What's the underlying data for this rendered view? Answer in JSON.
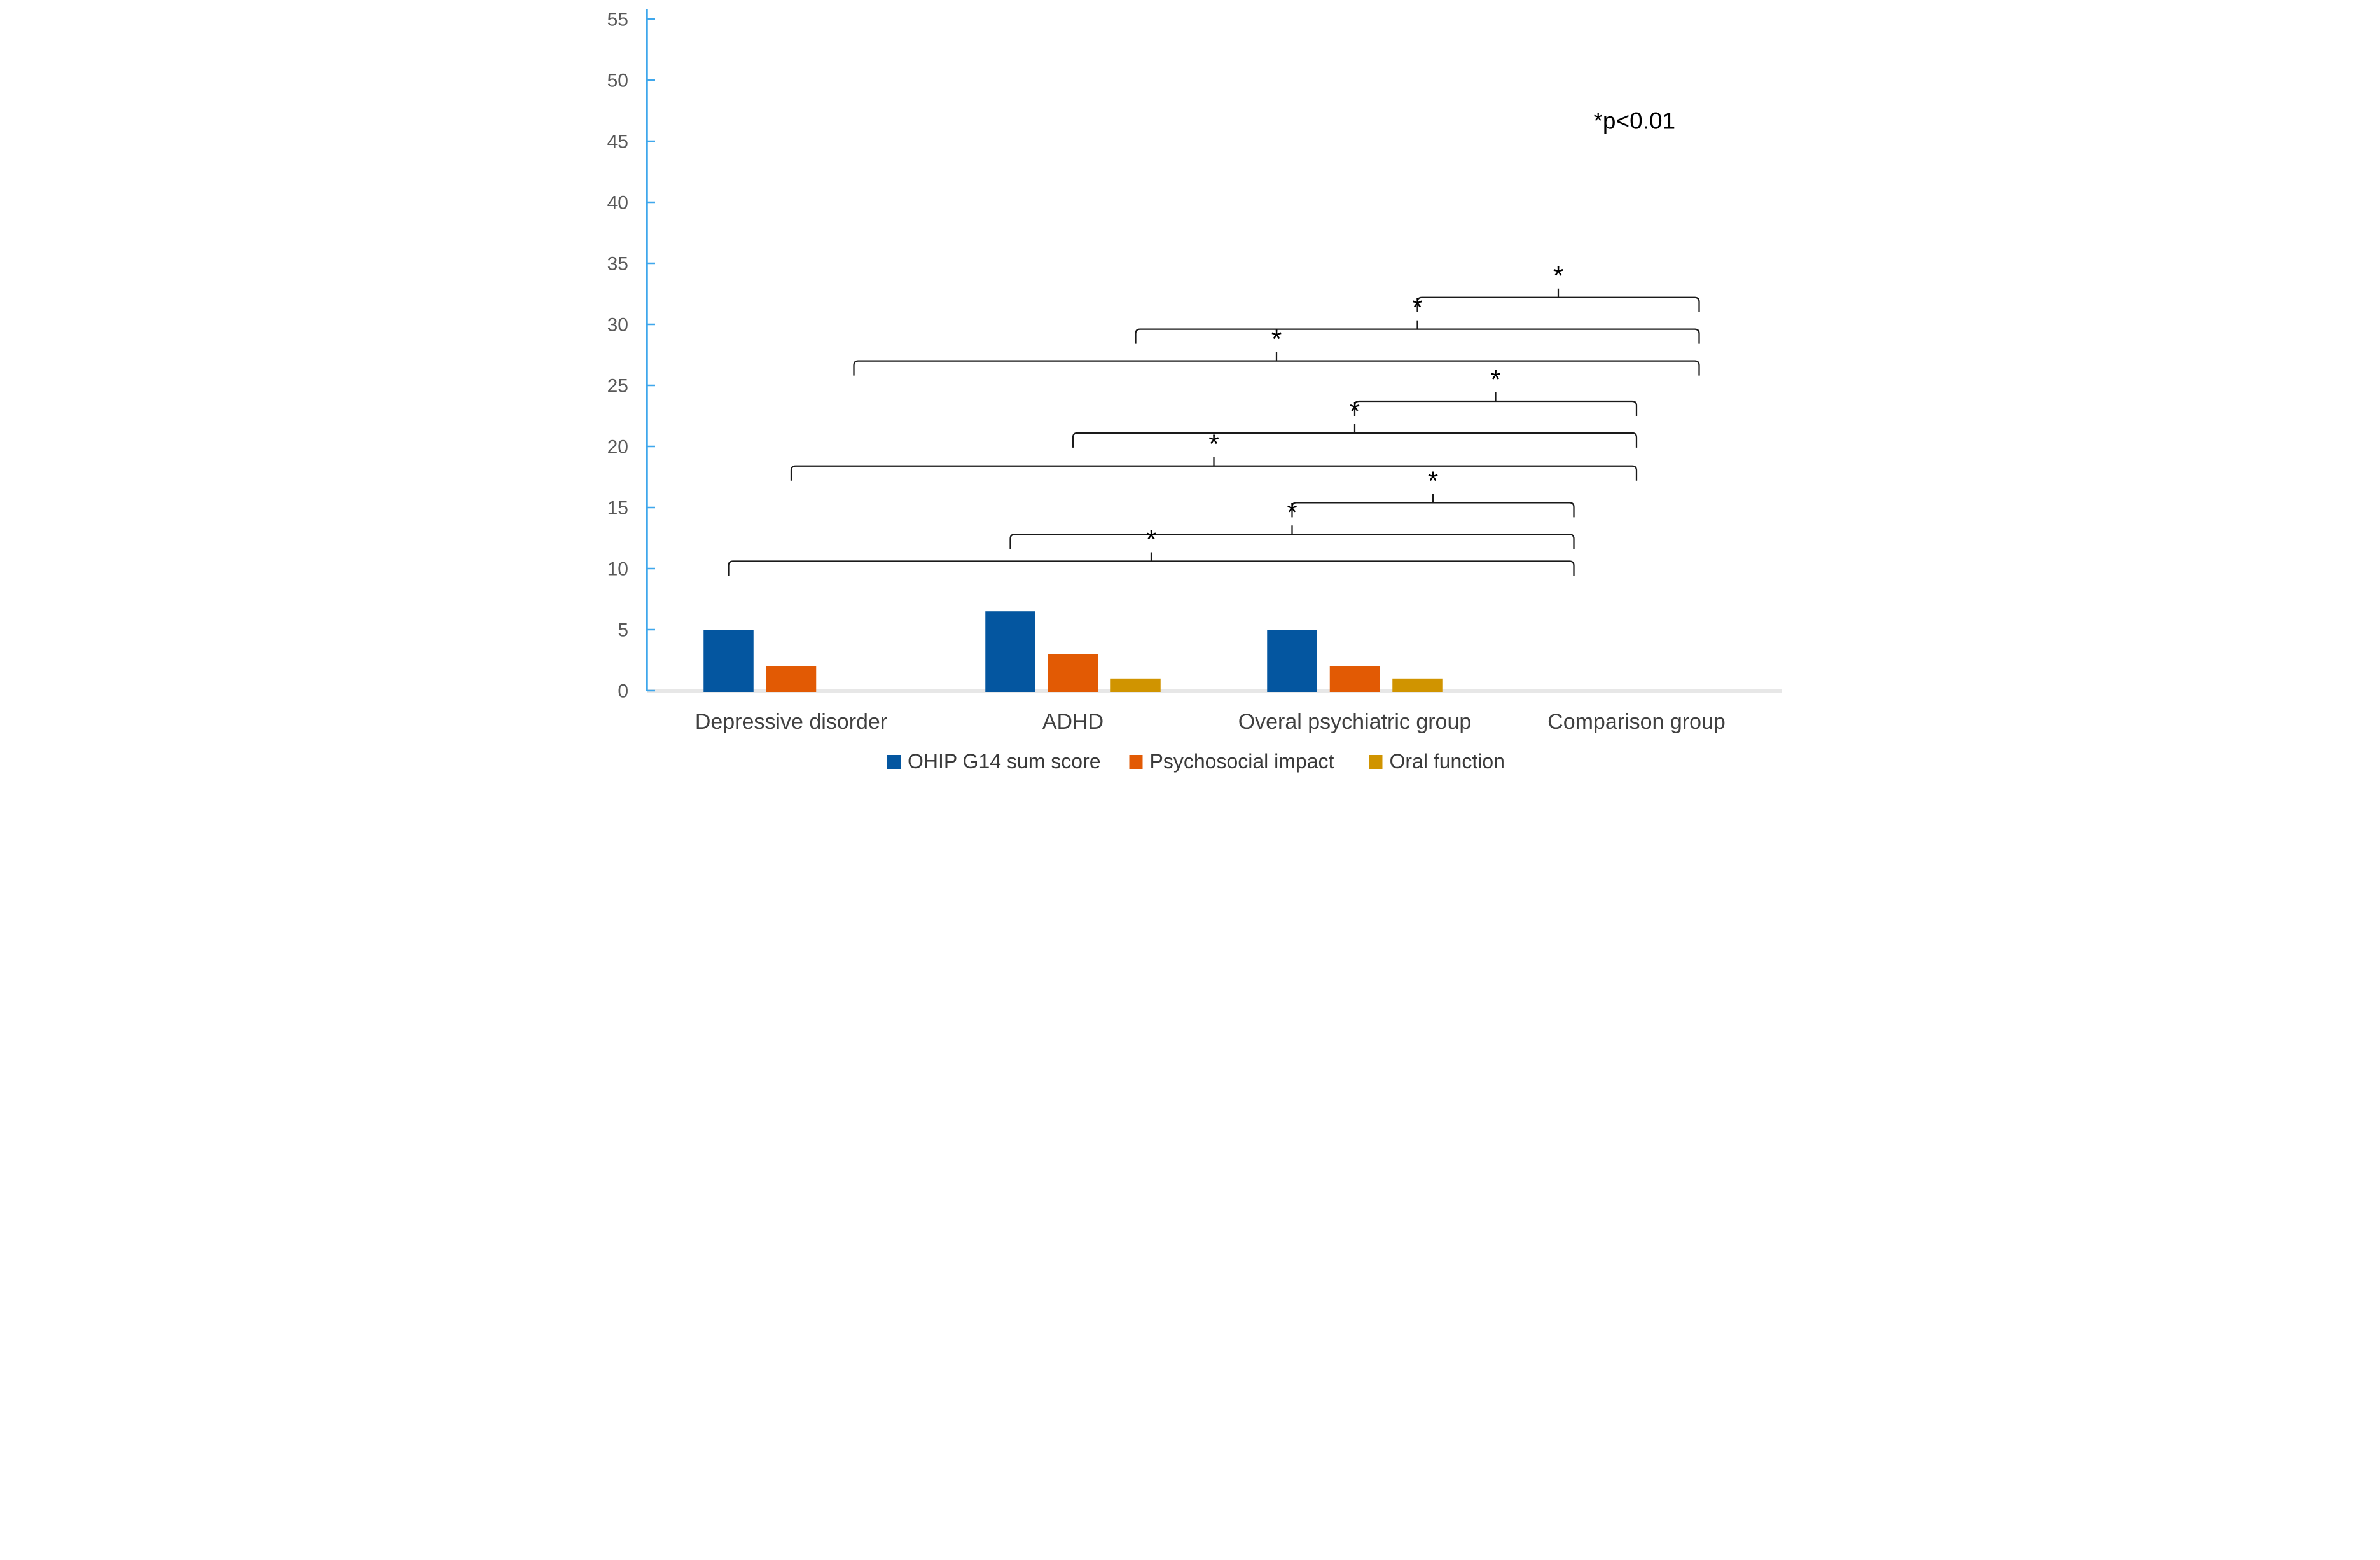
{
  "chart_data": {
    "type": "bar",
    "title": "",
    "xlabel": "",
    "ylabel": "",
    "categories": [
      "Depressive disorder",
      "ADHD",
      "Overal psychiatric group",
      "Comparison group"
    ],
    "series": [
      {
        "name": "OHIP G14 sum score",
        "color": "#0456A0",
        "values": [
          5,
          6.5,
          5,
          0
        ]
      },
      {
        "name": "Psychosocial impact",
        "color": "#E25A04",
        "values": [
          2,
          3,
          2,
          0
        ]
      },
      {
        "name": "Oral function",
        "color": "#D09400",
        "values": [
          0,
          1,
          1,
          0
        ]
      }
    ],
    "ylim": [
      0,
      55
    ],
    "ytick_step": 5,
    "y_tick_labels": [
      "0",
      "5",
      "10",
      "15",
      "20",
      "25",
      "30",
      "35",
      "40",
      "45",
      "50",
      "55"
    ],
    "grid": false,
    "legend_position": "bottom",
    "annotation": "*p<0.01",
    "significance_marker": "*",
    "brackets": [
      {
        "series": "Oral function",
        "group_a": "Overal psychiatric group",
        "group_b": "Comparison group",
        "level": 32.2,
        "label": "*"
      },
      {
        "series": "Oral function",
        "group_a": "ADHD",
        "group_b": "Comparison group",
        "level": 29.6,
        "label": "*"
      },
      {
        "series": "Oral function",
        "group_a": "Depressive disorder",
        "group_b": "Comparison group",
        "level": 27.0,
        "label": "*"
      },
      {
        "series": "Psychosocial impact",
        "group_a": "Overal psychiatric group",
        "group_b": "Comparison group",
        "level": 23.7,
        "label": "*"
      },
      {
        "series": "Psychosocial impact",
        "group_a": "ADHD",
        "group_b": "Comparison group",
        "level": 21.1,
        "label": "*"
      },
      {
        "series": "Psychosocial impact",
        "group_a": "Depressive disorder",
        "group_b": "Comparison group",
        "level": 18.4,
        "label": "*"
      },
      {
        "series": "OHIP G14 sum score",
        "group_a": "Overal psychiatric group",
        "group_b": "Comparison group",
        "level": 15.4,
        "label": "*"
      },
      {
        "series": "OHIP G14 sum score",
        "group_a": "ADHD",
        "group_b": "Comparison group",
        "level": 12.8,
        "label": "*"
      },
      {
        "series": "OHIP G14 sum score",
        "group_a": "Depressive disorder",
        "group_b": "Comparison group",
        "level": 10.6,
        "label": "*"
      }
    ],
    "colors": {
      "axis_line": "#3FA7EC",
      "baseline": "#E7E7E7",
      "tick_label": "#595959",
      "category_label": "#404040",
      "legend_text": "#3A3A3A",
      "bracket": "#1A1A1A",
      "annotation_text": "#000000"
    }
  }
}
